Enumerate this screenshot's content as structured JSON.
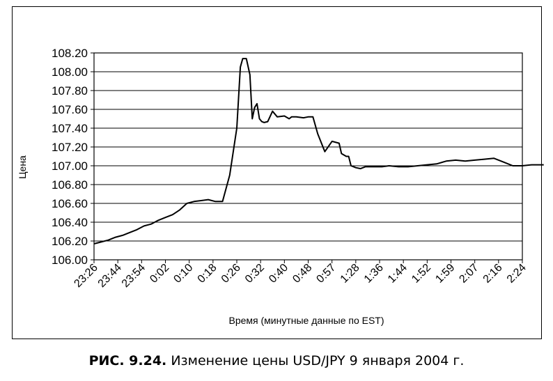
{
  "chart_data": {
    "type": "line",
    "xlabel": "Время (минутные данные по EST)",
    "ylabel": "Цена",
    "ylim": [
      106.0,
      108.2
    ],
    "y_ticks": [
      "106.00",
      "106.20",
      "106.40",
      "106.60",
      "106.80",
      "107.00",
      "107.20",
      "107.40",
      "107.60",
      "107.80",
      "108.00",
      "108.20"
    ],
    "x_ticks": [
      "23:26",
      "23:44",
      "23:54",
      "0:02",
      "0:10",
      "0:18",
      "0:26",
      "0:32",
      "0:40",
      "0:48",
      "0:57",
      "1:28",
      "1:36",
      "1:44",
      "1:52",
      "1:59",
      "2:07",
      "2:16",
      "2:24"
    ],
    "grid": "horizontal",
    "legend": "none",
    "series": [
      {
        "x": [
          0,
          0.3,
          0.6,
          0.9,
          1.2,
          1.5,
          1.8,
          2.1,
          2.4,
          2.7,
          3.0,
          3.3,
          3.6,
          3.9,
          4.2,
          4.5,
          4.8,
          5.1,
          5.4,
          5.7,
          6.0,
          6.15,
          6.25,
          6.4,
          6.55,
          6.65,
          6.75,
          6.85,
          6.95,
          7.05,
          7.15,
          7.3,
          7.5,
          7.7,
          8.0,
          8.2,
          8.3,
          8.5,
          8.8,
          9.0,
          9.2,
          9.4,
          9.7,
          10.0,
          10.3,
          10.4,
          10.6,
          10.7,
          10.8,
          11.0,
          11.2,
          11.4,
          11.6,
          11.8,
          12.1,
          12.4,
          12.8,
          13.2,
          13.6,
          14.0,
          14.4,
          14.8,
          15.2,
          15.6,
          16.0,
          16.4,
          16.8,
          17.2,
          17.6,
          18.0,
          18.4,
          18.9
        ],
        "y": [
          106.17,
          106.19,
          106.21,
          106.24,
          106.26,
          106.29,
          106.32,
          106.36,
          106.38,
          106.42,
          106.45,
          106.48,
          106.53,
          106.6,
          106.62,
          106.63,
          106.64,
          106.62,
          106.62,
          106.9,
          107.4,
          108.05,
          108.14,
          108.14,
          107.97,
          107.5,
          107.62,
          107.66,
          107.5,
          107.47,
          107.46,
          107.47,
          107.58,
          107.52,
          107.53,
          107.5,
          107.52,
          107.52,
          107.51,
          107.52,
          107.52,
          107.34,
          107.15,
          107.26,
          107.24,
          107.13,
          107.1,
          107.1,
          107.0,
          106.98,
          106.97,
          106.99,
          106.99,
          106.99,
          106.99,
          107.0,
          106.99,
          106.99,
          107.0,
          107.01,
          107.02,
          107.05,
          107.06,
          107.05,
          107.06,
          107.07,
          107.08,
          107.04,
          107.0,
          107.0,
          107.01,
          107.01
        ]
      }
    ]
  },
  "caption": {
    "label": "РИС. 9.24.",
    "text": "Изменение цены USD/JPY 9 января 2004 г."
  }
}
